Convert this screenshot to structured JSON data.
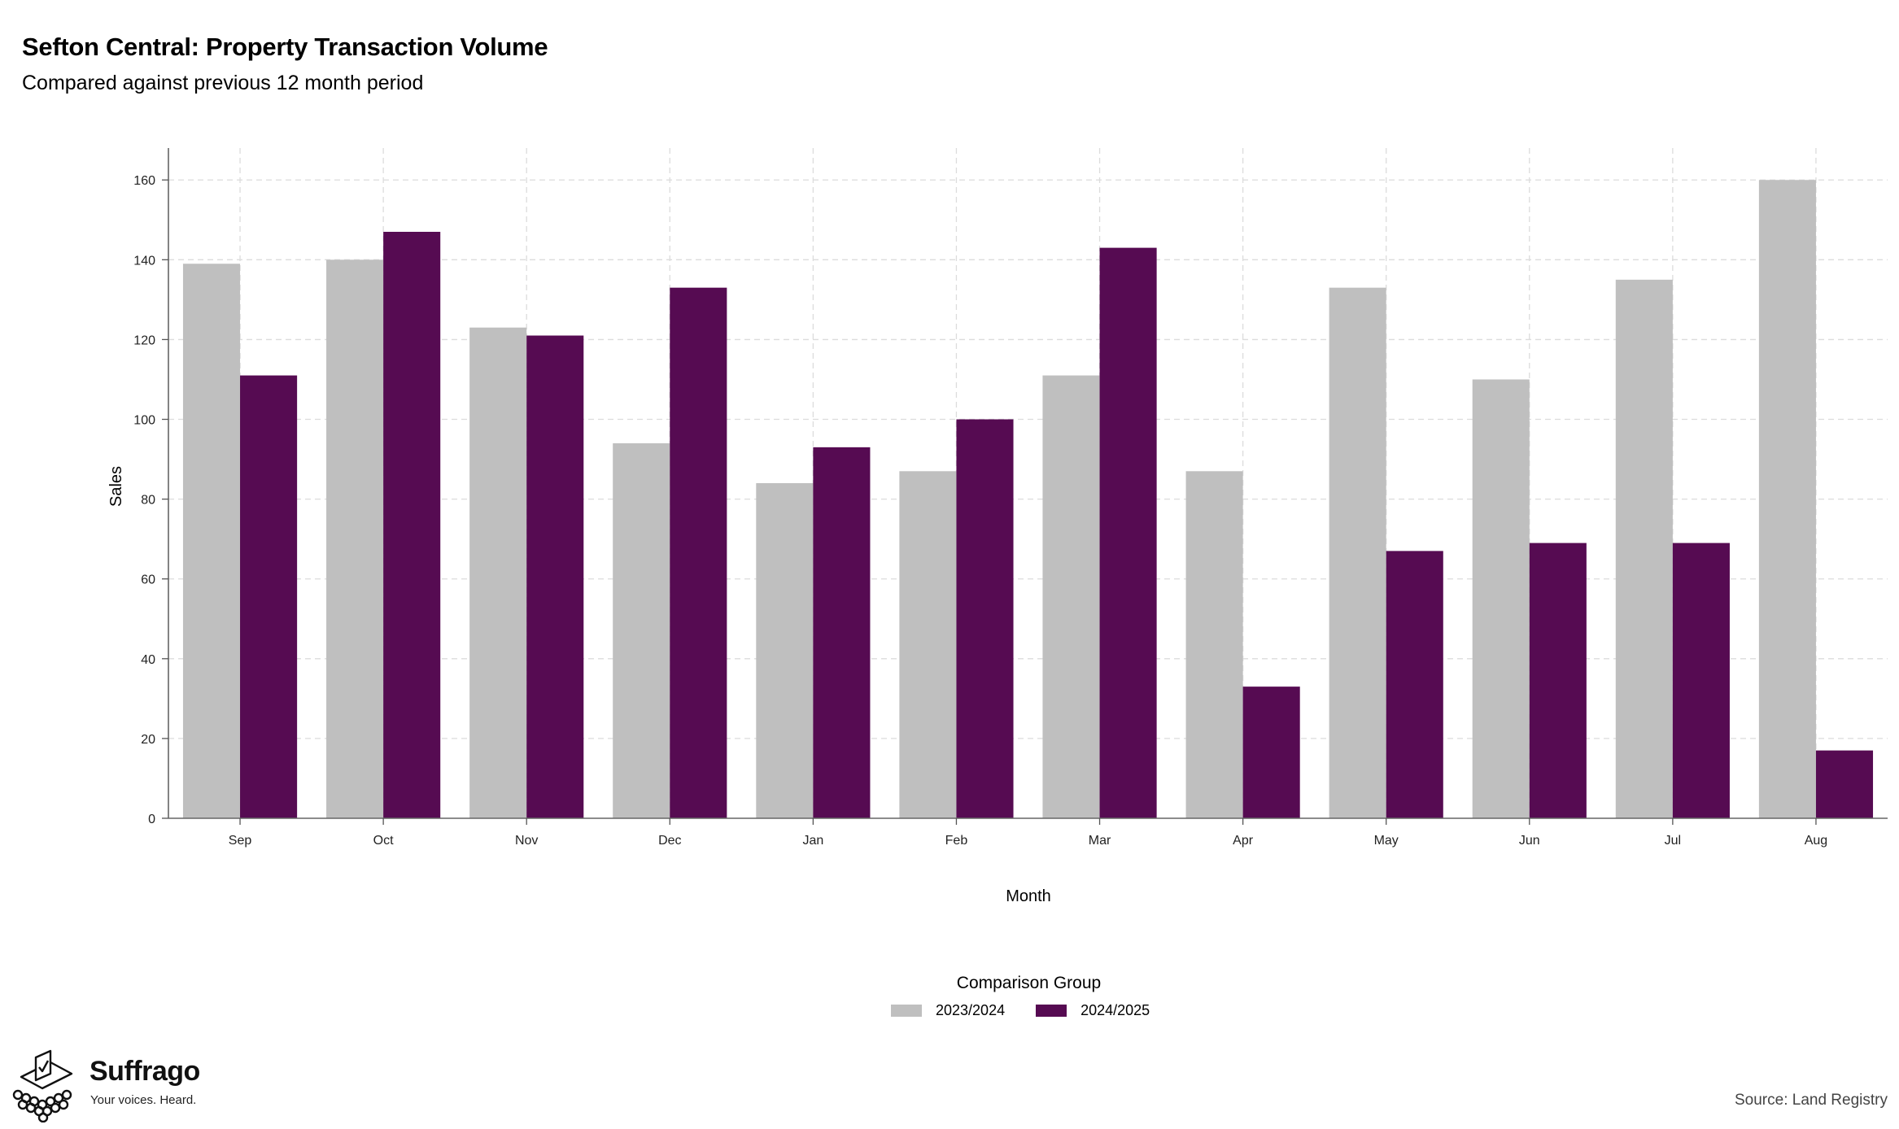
{
  "header": {
    "title": "Sefton Central: Property Transaction Volume",
    "subtitle": "Compared against previous 12 month period"
  },
  "chart_data": {
    "type": "bar",
    "title": "Sefton Central: Property Transaction Volume",
    "subtitle": "Compared against previous 12 month period",
    "xlabel": "Month",
    "ylabel": "Sales",
    "ylim": [
      0,
      168
    ],
    "yticks": [
      0,
      20,
      40,
      60,
      80,
      100,
      120,
      140,
      160
    ],
    "grid": true,
    "legend_position": "bottom",
    "categories": [
      "Sep",
      "Oct",
      "Nov",
      "Dec",
      "Jan",
      "Feb",
      "Mar",
      "Apr",
      "May",
      "Jun",
      "Jul",
      "Aug"
    ],
    "series": [
      {
        "name": "2023/2024",
        "color": "#bfbfbf",
        "values": [
          139,
          140,
          123,
          94,
          84,
          87,
          111,
          87,
          133,
          110,
          135,
          160
        ]
      },
      {
        "name": "2024/2025",
        "color": "#560b52",
        "values": [
          111,
          147,
          121,
          133,
          93,
          100,
          143,
          33,
          67,
          69,
          69,
          17
        ]
      }
    ]
  },
  "legend": {
    "title": "Comparison Group",
    "items": [
      {
        "label": "2023/2024",
        "color": "#bfbfbf"
      },
      {
        "label": "2024/2025",
        "color": "#560b52"
      }
    ]
  },
  "branding": {
    "name": "Suffrago",
    "tagline": "Your voices. Heard.",
    "logo_icon": "ballot-box-icon"
  },
  "footer": {
    "source": "Source: Land Registry"
  }
}
